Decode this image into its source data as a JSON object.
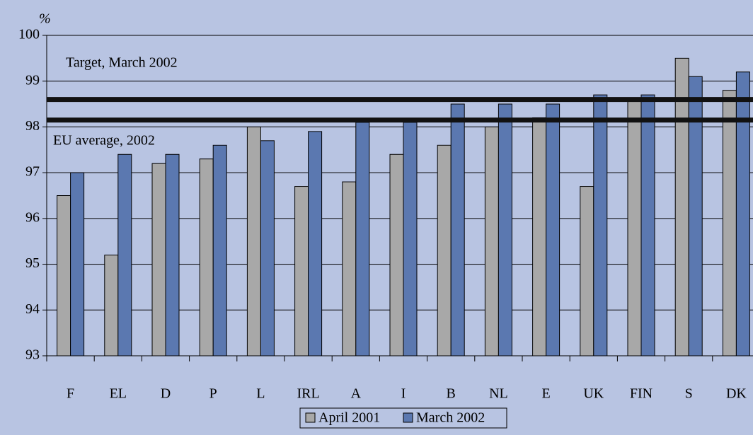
{
  "chart_data": {
    "type": "bar",
    "y_unit": "%",
    "categories": [
      "F",
      "EL",
      "D",
      "P",
      "L",
      "IRL",
      "A",
      "I",
      "B",
      "NL",
      "E",
      "UK",
      "FIN",
      "S",
      "DK"
    ],
    "series": [
      {
        "name": "April 2001",
        "color": "#a8a8a8",
        "values": [
          96.5,
          95.2,
          97.2,
          97.3,
          98.0,
          96.7,
          96.8,
          97.4,
          97.6,
          98.0,
          98.2,
          96.7,
          98.6,
          99.5,
          98.8
        ]
      },
      {
        "name": "March 2002",
        "color": "#5b78b0",
        "values": [
          97.0,
          97.4,
          97.4,
          97.6,
          97.7,
          97.9,
          98.1,
          98.1,
          98.5,
          98.5,
          98.5,
          98.7,
          98.7,
          99.1,
          99.2
        ]
      }
    ],
    "reference_lines": [
      {
        "label": "Target, March 2002",
        "value": 98.6
      },
      {
        "label": "EU average, 2002",
        "value": 98.15
      }
    ],
    "ylim": [
      93,
      100
    ],
    "yticks": [
      93,
      94,
      95,
      96,
      97,
      98,
      99,
      100
    ],
    "grid": true
  }
}
